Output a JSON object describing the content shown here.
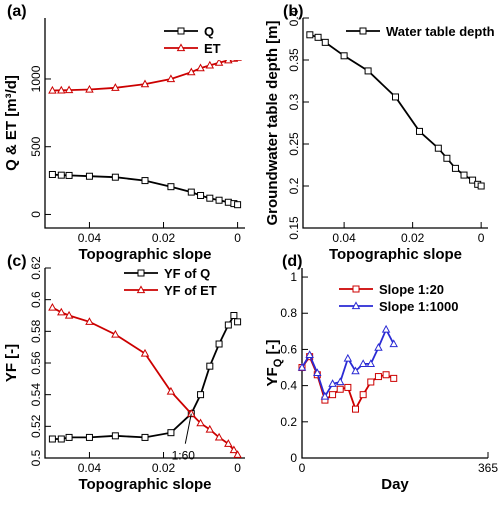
{
  "chart_data": [
    {
      "type": "line",
      "panel_label": "(a)",
      "xlabel": "Topographic slope",
      "ylabel": "Q & ET [m³/d]",
      "xlim": [
        0.052,
        -0.002
      ],
      "ylim": [
        -100,
        1450
      ],
      "xticks": [
        0.04,
        0.02,
        0
      ],
      "xtick_labels": [
        "0.04",
        "0.02",
        "0"
      ],
      "yticks": [
        0,
        500,
        1000
      ],
      "ytick_labels": [
        "0",
        "500",
        "1000"
      ],
      "ytick_rotated": true,
      "legend_position": "top-right",
      "series": [
        {
          "name": "Q",
          "color": "#000000",
          "marker": "square",
          "x": [
            0.05,
            0.0476,
            0.0455,
            0.04,
            0.033,
            0.025,
            0.018,
            0.0125,
            0.01,
            0.0075,
            0.005,
            0.0025,
            0.001,
            0
          ],
          "y": [
            295,
            290,
            288,
            282,
            275,
            250,
            205,
            165,
            140,
            120,
            105,
            90,
            80,
            72
          ]
        },
        {
          "name": "ET",
          "color": "#cc0000",
          "marker": "triangle",
          "x": [
            0.05,
            0.0476,
            0.0455,
            0.04,
            0.033,
            0.025,
            0.018,
            0.0125,
            0.01,
            0.0075,
            0.005,
            0.0025,
            0.001,
            0
          ],
          "y": [
            915,
            916,
            918,
            922,
            935,
            962,
            1000,
            1050,
            1080,
            1100,
            1120,
            1138,
            1150,
            1157
          ]
        }
      ]
    },
    {
      "type": "line",
      "panel_label": "(b)",
      "xlabel": "Topographic slope",
      "ylabel": "Groundwater table depth [m]",
      "xlim": [
        0.052,
        -0.002
      ],
      "ylim": [
        0.15,
        0.4
      ],
      "xticks": [
        0.04,
        0.02,
        0
      ],
      "xtick_labels": [
        "0.04",
        "0.02",
        "0"
      ],
      "yticks": [
        0.15,
        0.2,
        0.25,
        0.3,
        0.35,
        0.4
      ],
      "ytick_labels": [
        "0.15",
        "0.2",
        "0.25",
        "0.3",
        "0.35",
        "0.4"
      ],
      "ytick_rotated": true,
      "legend_position": "top-right",
      "series": [
        {
          "name": "Water table depth",
          "color": "#000000",
          "marker": "square",
          "x": [
            0.05,
            0.0476,
            0.0455,
            0.04,
            0.033,
            0.025,
            0.018,
            0.0125,
            0.01,
            0.0075,
            0.005,
            0.0025,
            0.001,
            0
          ],
          "y": [
            0.38,
            0.377,
            0.371,
            0.355,
            0.337,
            0.306,
            0.265,
            0.245,
            0.233,
            0.221,
            0.213,
            0.207,
            0.202,
            0.2
          ]
        }
      ]
    },
    {
      "type": "line",
      "panel_label": "(c)",
      "xlabel": "Topographic slope",
      "ylabel": "YF [-]",
      "xlim": [
        0.052,
        -0.002
      ],
      "ylim": [
        0.5,
        0.62
      ],
      "xticks": [
        0.04,
        0.02,
        0
      ],
      "xtick_labels": [
        "0.04",
        "0.02",
        "0"
      ],
      "yticks": [
        0.5,
        0.52,
        0.54,
        0.56,
        0.58,
        0.6,
        0.62
      ],
      "ytick_labels": [
        "0.5",
        "0.52",
        "0.54",
        "0.56",
        "0.58",
        "0.6",
        "0.62"
      ],
      "ytick_rotated": true,
      "legend_position": "top-right",
      "annotation": {
        "text": "1:60",
        "x": 0.0125,
        "y": 0.528
      },
      "series": [
        {
          "name": "YF of Q",
          "color": "#000000",
          "marker": "square",
          "x": [
            0.05,
            0.0476,
            0.0455,
            0.04,
            0.033,
            0.025,
            0.018,
            0.0125,
            0.01,
            0.0075,
            0.005,
            0.0025,
            0.001,
            0
          ],
          "y": [
            0.512,
            0.512,
            0.513,
            0.513,
            0.514,
            0.513,
            0.516,
            0.528,
            0.54,
            0.558,
            0.572,
            0.584,
            0.59,
            0.586
          ]
        },
        {
          "name": "YF of ET",
          "color": "#cc0000",
          "marker": "triangle",
          "x": [
            0.05,
            0.0476,
            0.0455,
            0.04,
            0.033,
            0.025,
            0.018,
            0.0125,
            0.01,
            0.0075,
            0.005,
            0.0025,
            0.001,
            0
          ],
          "y": [
            0.595,
            0.592,
            0.59,
            0.586,
            0.578,
            0.566,
            0.542,
            0.528,
            0.522,
            0.518,
            0.513,
            0.509,
            0.505,
            0.502
          ]
        }
      ]
    },
    {
      "type": "line",
      "panel_label": "(d)",
      "xlabel": "Day",
      "ylabel": "YF_Q [-]",
      "xlim": [
        0,
        365
      ],
      "ylim": [
        0,
        1.05
      ],
      "xticks": [
        0,
        365
      ],
      "xtick_labels": [
        "0",
        "365"
      ],
      "yticks": [
        0,
        0.2,
        0.4,
        0.6,
        0.8,
        1
      ],
      "ytick_labels": [
        "0",
        "0.2",
        "0.4",
        "0.6",
        "0.8",
        "1"
      ],
      "ytick_rotated": false,
      "legend_position": "top-left",
      "series": [
        {
          "name": "Slope 1:20",
          "color": "#cc0000",
          "marker": "square",
          "x": [
            0,
            15,
            30,
            45,
            60,
            75,
            90,
            105,
            120,
            135,
            150,
            165,
            180
          ],
          "y": [
            0.5,
            0.56,
            0.46,
            0.32,
            0.35,
            0.38,
            0.39,
            0.27,
            0.35,
            0.42,
            0.45,
            0.46,
            0.44
          ]
        },
        {
          "name": "Slope 1:1000",
          "color": "#2a2ad4",
          "marker": "triangle",
          "x": [
            0,
            15,
            30,
            45,
            60,
            75,
            90,
            105,
            120,
            135,
            150,
            165,
            180
          ],
          "y": [
            0.5,
            0.57,
            0.47,
            0.34,
            0.41,
            0.42,
            0.55,
            0.48,
            0.52,
            0.52,
            0.61,
            0.71,
            0.63
          ]
        }
      ]
    }
  ]
}
